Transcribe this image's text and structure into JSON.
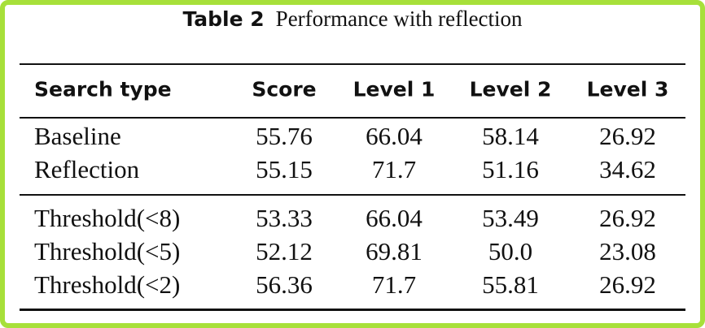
{
  "header": {
    "label": "Table 2",
    "title": "Performance with reflection"
  },
  "table": {
    "columns": [
      "Search type",
      "Score",
      "Level 1",
      "Level 2",
      "Level 3"
    ],
    "rows": [
      [
        "Baseline",
        "55.76",
        "66.04",
        "58.14",
        "26.92"
      ],
      [
        "Reflection",
        "55.15",
        "71.7",
        "51.16",
        "34.62"
      ],
      [
        "Threshold(<8)",
        "53.33",
        "66.04",
        "53.49",
        "26.92"
      ],
      [
        "Threshold(<5)",
        "52.12",
        "69.81",
        "50.0",
        "23.08"
      ],
      [
        "Threshold(<2)",
        "56.36",
        "71.7",
        "55.81",
        "26.92"
      ]
    ]
  }
}
